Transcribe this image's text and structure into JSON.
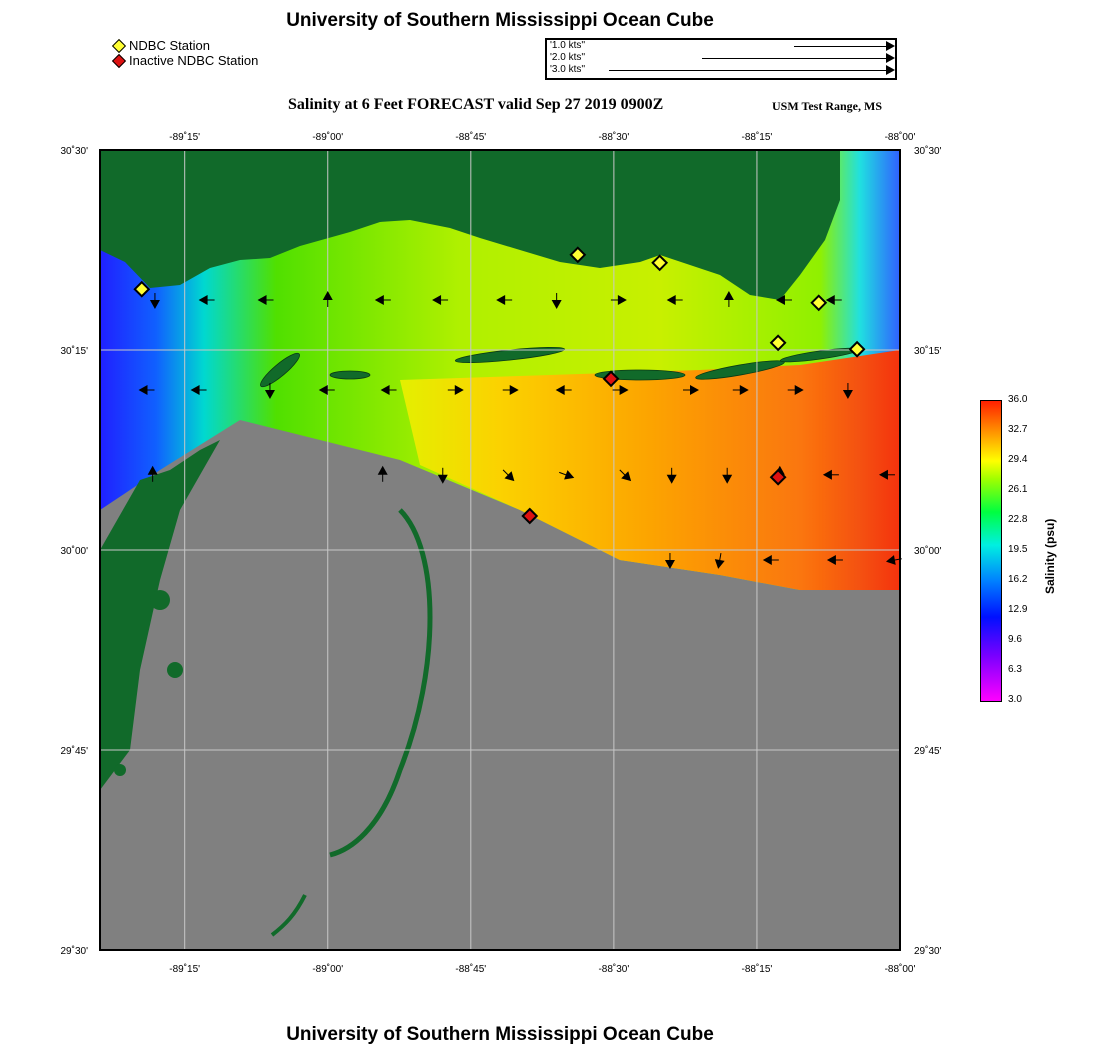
{
  "title_top": "University of Southern Mississippi Ocean Cube",
  "title_bottom": "University of Southern Mississippi Ocean Cube",
  "legend": [
    {
      "label": "NDBC Station",
      "color": "#ffff33"
    },
    {
      "label": "Inactive NDBC Station",
      "color": "#dd1111"
    }
  ],
  "vector_legend": [
    {
      "label": "'1.0 kts''",
      "kts": 1.0
    },
    {
      "label": "'2.0 kts''",
      "kts": 2.0
    },
    {
      "label": "'3.0 kts''",
      "kts": 3.0
    }
  ],
  "subtitle": "Salinity at 6 Feet FORECAST valid Sep 27 2019 0900Z",
  "region": "USM Test Range, MS",
  "map": {
    "lon_range": [
      -89.398,
      -88.0
    ],
    "lat_range": [
      29.5,
      30.5
    ],
    "lon_ticks": [
      {
        "value": -89.25,
        "label": "-89˚15'"
      },
      {
        "value": -89.0,
        "label": "-89˚00'"
      },
      {
        "value": -88.75,
        "label": "-88˚45'"
      },
      {
        "value": -88.5,
        "label": "-88˚30'"
      },
      {
        "value": -88.25,
        "label": "-88˚15'"
      },
      {
        "value": -88.0,
        "label": "-88˚00'"
      }
    ],
    "lat_ticks": [
      {
        "value": 30.5,
        "label": "30˚30'"
      },
      {
        "value": 30.25,
        "label": "30˚15'"
      },
      {
        "value": 30.0,
        "label": "30˚00'"
      },
      {
        "value": 29.75,
        "label": "29˚45'"
      },
      {
        "value": 29.5,
        "label": "29˚30'"
      }
    ],
    "stations_active": [
      [
        -89.325,
        30.326
      ],
      [
        -88.563,
        30.369
      ],
      [
        -88.42,
        30.359
      ],
      [
        -88.213,
        30.259
      ],
      [
        -88.142,
        30.309
      ],
      [
        -88.075,
        30.251
      ]
    ],
    "stations_inactive": [
      [
        -88.505,
        30.214
      ],
      [
        -88.647,
        30.0425
      ],
      [
        -88.213,
        30.091
      ]
    ],
    "current_vectors": [
      [
        -89.302,
        30.3125,
        90
      ],
      [
        -89.21,
        30.3125,
        180
      ],
      [
        -89.107,
        30.3125,
        180
      ],
      [
        -89.0,
        30.3125,
        -90
      ],
      [
        -88.902,
        30.3125,
        180
      ],
      [
        -88.802,
        30.3125,
        180
      ],
      [
        -88.69,
        30.3125,
        180
      ],
      [
        -88.6,
        30.3125,
        90
      ],
      [
        -88.493,
        30.3125,
        0
      ],
      [
        -88.392,
        30.3125,
        180
      ],
      [
        -88.299,
        30.3125,
        -90
      ],
      [
        -88.201,
        30.3125,
        180
      ],
      [
        -88.114,
        30.3125,
        180
      ],
      [
        -89.315,
        30.2,
        180
      ],
      [
        -89.224,
        30.2,
        180
      ],
      [
        -89.101,
        30.2,
        90
      ],
      [
        -89.0,
        30.2,
        180
      ],
      [
        -88.892,
        30.2,
        180
      ],
      [
        -88.778,
        30.2,
        0
      ],
      [
        -88.682,
        30.2,
        0
      ],
      [
        -88.586,
        30.2,
        180
      ],
      [
        -88.49,
        30.2,
        0
      ],
      [
        -88.367,
        30.2,
        0
      ],
      [
        -88.28,
        30.2,
        0
      ],
      [
        -88.184,
        30.2,
        0
      ],
      [
        -88.091,
        30.2,
        90
      ],
      [
        -89.306,
        30.094,
        -90
      ],
      [
        -88.904,
        30.094,
        -90
      ],
      [
        -88.799,
        30.094,
        90
      ],
      [
        -88.685,
        30.094,
        45
      ],
      [
        -88.584,
        30.094,
        20
      ],
      [
        -88.481,
        30.094,
        45
      ],
      [
        -88.399,
        30.094,
        90
      ],
      [
        -88.302,
        30.094,
        90
      ],
      [
        -88.21,
        30.094,
        -90
      ],
      [
        -88.119,
        30.094,
        180
      ],
      [
        -88.021,
        30.094,
        180
      ],
      [
        -88.402,
        29.9875,
        90
      ],
      [
        -88.315,
        29.9875,
        100
      ],
      [
        -88.224,
        29.9875,
        180
      ],
      [
        -88.112,
        29.9875,
        180
      ],
      [
        -88.009,
        29.9875,
        170
      ]
    ]
  },
  "colorbar": {
    "label": "Salinity (psu)",
    "ticks": [
      "36.0",
      "32.7",
      "29.4",
      "26.1",
      "22.8",
      "19.5",
      "16.2",
      "12.9",
      "9.6",
      "6.3",
      "3.0"
    ],
    "range": [
      3.0,
      36.0
    ]
  },
  "colors": {
    "land": "#116a2a",
    "nodata": "#808080"
  }
}
